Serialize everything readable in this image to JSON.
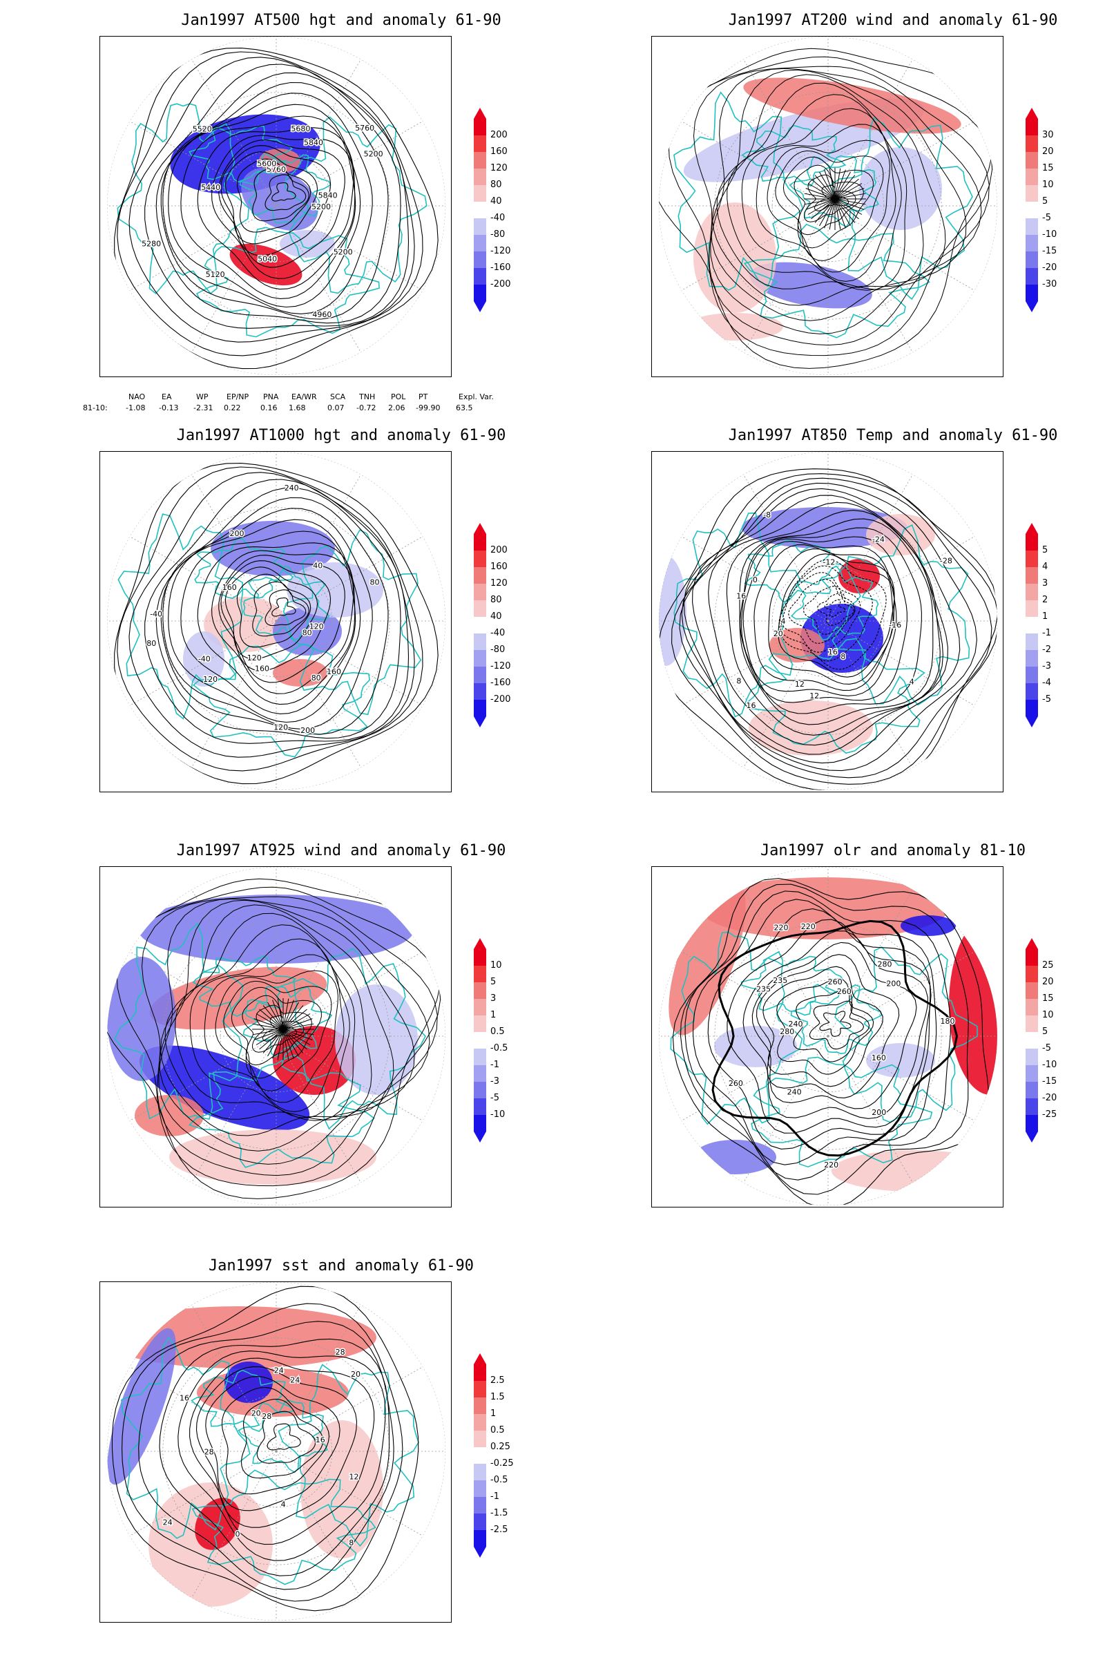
{
  "panels": [
    {
      "id": "at500",
      "title": "Jan1997 AT500 hgt and anomaly 61-90",
      "colorbar": [
        "200",
        "160",
        "120",
        "80",
        "40",
        "-40",
        "-80",
        "-120",
        "-160",
        "-200"
      ],
      "contour_labels": [
        "5760",
        "5840",
        "5200",
        "5200",
        "5200",
        "4960",
        "5040",
        "5120",
        "5280",
        "5440",
        "5520",
        "5600",
        "5680",
        "5760",
        "5840"
      ],
      "field": "height"
    },
    {
      "id": "at200",
      "title": "Jan1997 AT200 wind and anomaly 61-90",
      "colorbar": [
        "30",
        "20",
        "15",
        "10",
        "5",
        "-5",
        "-10",
        "-15",
        "-20",
        "-30"
      ],
      "contour_labels": [],
      "field": "wind"
    },
    {
      "id": "at1000",
      "title": "Jan1997 AT1000 hgt and anomaly 61-90",
      "colorbar": [
        "200",
        "160",
        "120",
        "80",
        "40",
        "-40",
        "-80",
        "-120",
        "-160",
        "-200"
      ],
      "contour_labels": [
        "80",
        "80",
        "120",
        "120",
        "-40",
        "-40",
        "160",
        "200",
        "240",
        "40",
        "80",
        "120",
        "160",
        "200",
        "160",
        "120",
        "80"
      ],
      "field": "height"
    },
    {
      "id": "at850",
      "title": "Jan1997 AT850 Temp and anomaly 61-90",
      "colorbar": [
        "5",
        "4",
        "3",
        "2",
        "1",
        "-1",
        "-2",
        "-3",
        "-4",
        "-5"
      ],
      "contour_labels": [
        "16",
        "12",
        "8",
        "4",
        "0",
        "-8",
        "-12",
        "-24",
        "-28",
        "-16",
        "4",
        "8",
        "12",
        "16",
        "20",
        "16"
      ],
      "field": "temp"
    },
    {
      "id": "at925",
      "title": "Jan1997 AT925 wind and anomaly 61-90",
      "colorbar": [
        "10",
        "5",
        "3",
        "1",
        "0.5",
        "-0.5",
        "-1",
        "-3",
        "-5",
        "-10"
      ],
      "contour_labels": [],
      "field": "wind"
    },
    {
      "id": "olr",
      "title": "Jan1997 olr and anomaly 81-10",
      "colorbar": [
        "25",
        "20",
        "15",
        "10",
        "5",
        "-5",
        "-10",
        "-15",
        "-20",
        "-25"
      ],
      "contour_labels": [
        "240",
        "235",
        "220",
        "260",
        "200",
        "180",
        "160",
        "200",
        "220",
        "240",
        "260",
        "280",
        "235",
        "220",
        "260",
        "280"
      ],
      "field": "olr"
    },
    {
      "id": "sst",
      "title": "Jan1997 sst and anomaly 61-90",
      "colorbar": [
        "2.5",
        "1.5",
        "1",
        "0.5",
        "0.25",
        "-0.25",
        "-0.5",
        "-1",
        "-1.5",
        "-2.5"
      ],
      "contour_labels": [
        "28",
        "24",
        "20",
        "16",
        "12",
        "8",
        "4",
        "0",
        "24",
        "28",
        "16",
        "20",
        "24",
        "28"
      ],
      "field": "sst"
    }
  ],
  "teleconnection": {
    "headers": [
      "NAO",
      "EA",
      "WP",
      "EP/NP",
      "PNA",
      "EA/WR",
      "SCA",
      "TNH",
      "POL",
      "PT",
      "Expl. Var."
    ],
    "row_label": "81-10:",
    "values": [
      "-1.08",
      "-0.13",
      "-2.31",
      "0.22",
      "0.16",
      "1.68",
      "0.07",
      "-0.72",
      "2.06",
      "-99.90",
      "63.5"
    ]
  },
  "colors": {
    "positive_strong": "#e8001a",
    "positive_mid": "#f07a78",
    "positive_light": "#f8c8c8",
    "neutral": "#ffffff",
    "negative_light": "#c8c8f4",
    "negative_mid": "#7a78ec",
    "negative_strong": "#1a10e8",
    "coastline": "#20c0c0",
    "contour": "#000000"
  }
}
